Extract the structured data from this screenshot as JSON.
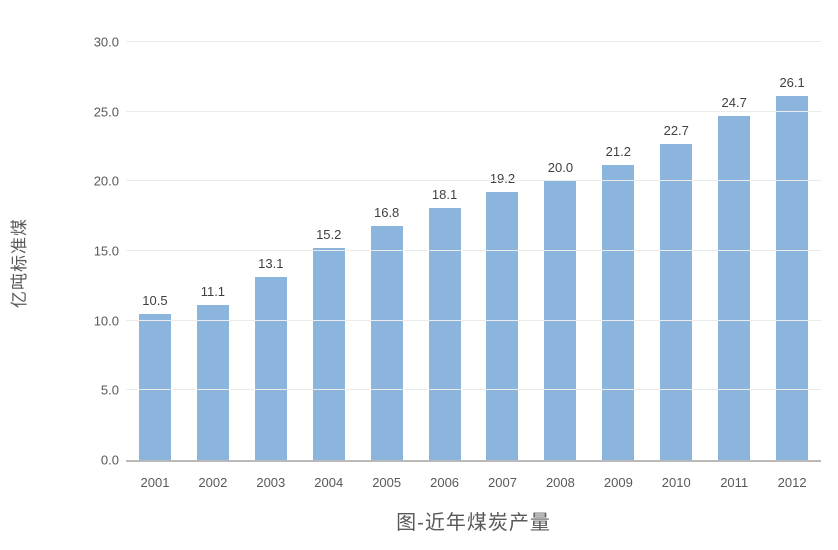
{
  "chart_data": {
    "type": "bar",
    "title": "图-近年煤炭产量",
    "ylabel": "亿吨标准煤",
    "xlabel": "",
    "categories": [
      "2001",
      "2002",
      "2003",
      "2004",
      "2005",
      "2006",
      "2007",
      "2008",
      "2009",
      "2010",
      "2011",
      "2012"
    ],
    "values": [
      10.5,
      11.1,
      13.1,
      15.2,
      16.8,
      18.1,
      19.2,
      20.0,
      21.2,
      22.7,
      24.7,
      26.1
    ],
    "value_labels": [
      "10.5",
      "11.1",
      "13.1",
      "15.2",
      "16.8",
      "18.1",
      "19.2",
      "20.0",
      "21.2",
      "22.7",
      "24.7",
      "26.1"
    ],
    "ylim": [
      0,
      30
    ],
    "ytick_step": 5,
    "ytick_labels": [
      "0.0",
      "5.0",
      "10.0",
      "15.0",
      "20.0",
      "25.0",
      "30.0"
    ],
    "grid": true,
    "legend": "none",
    "bar_color": "#8cb5de",
    "gridline_color": "#ebebeb",
    "axis_line_color": "#b9b9b9",
    "tick_text_color": "#595959",
    "data_label_color": "#404040"
  }
}
